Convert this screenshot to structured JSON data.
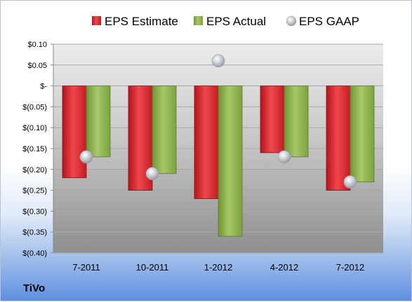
{
  "chart_data": {
    "type": "bar",
    "company": "TiVo",
    "categories": [
      "7-2011",
      "10-2011",
      "1-2012",
      "4-2012",
      "7-2012"
    ],
    "series": [
      {
        "name": "EPS Estimate",
        "kind": "bar",
        "color": "#d9232a",
        "values": [
          -0.22,
          -0.25,
          -0.27,
          -0.16,
          -0.25
        ]
      },
      {
        "name": "EPS Actual",
        "kind": "bar",
        "color": "#8ab04a",
        "values": [
          -0.17,
          -0.21,
          -0.36,
          -0.17,
          -0.23
        ]
      },
      {
        "name": "EPS GAAP",
        "kind": "marker",
        "color": "#b8bcc4",
        "values": [
          -0.17,
          -0.21,
          0.06,
          -0.17,
          -0.23
        ]
      }
    ],
    "ylim": [
      -0.4,
      0.1
    ],
    "yticks": [
      0.1,
      0.05,
      0.0,
      -0.05,
      -0.1,
      -0.15,
      -0.2,
      -0.25,
      -0.3,
      -0.35,
      -0.4
    ],
    "ytick_labels": [
      "$0.10",
      "$0.05",
      "$-",
      "$(0.05)",
      "$(0.10)",
      "$(0.15)",
      "$(0.20)",
      "$(0.25)",
      "$(0.30)",
      "$(0.35)",
      "$(0.40)"
    ],
    "legend_position": "top",
    "grid": true
  }
}
